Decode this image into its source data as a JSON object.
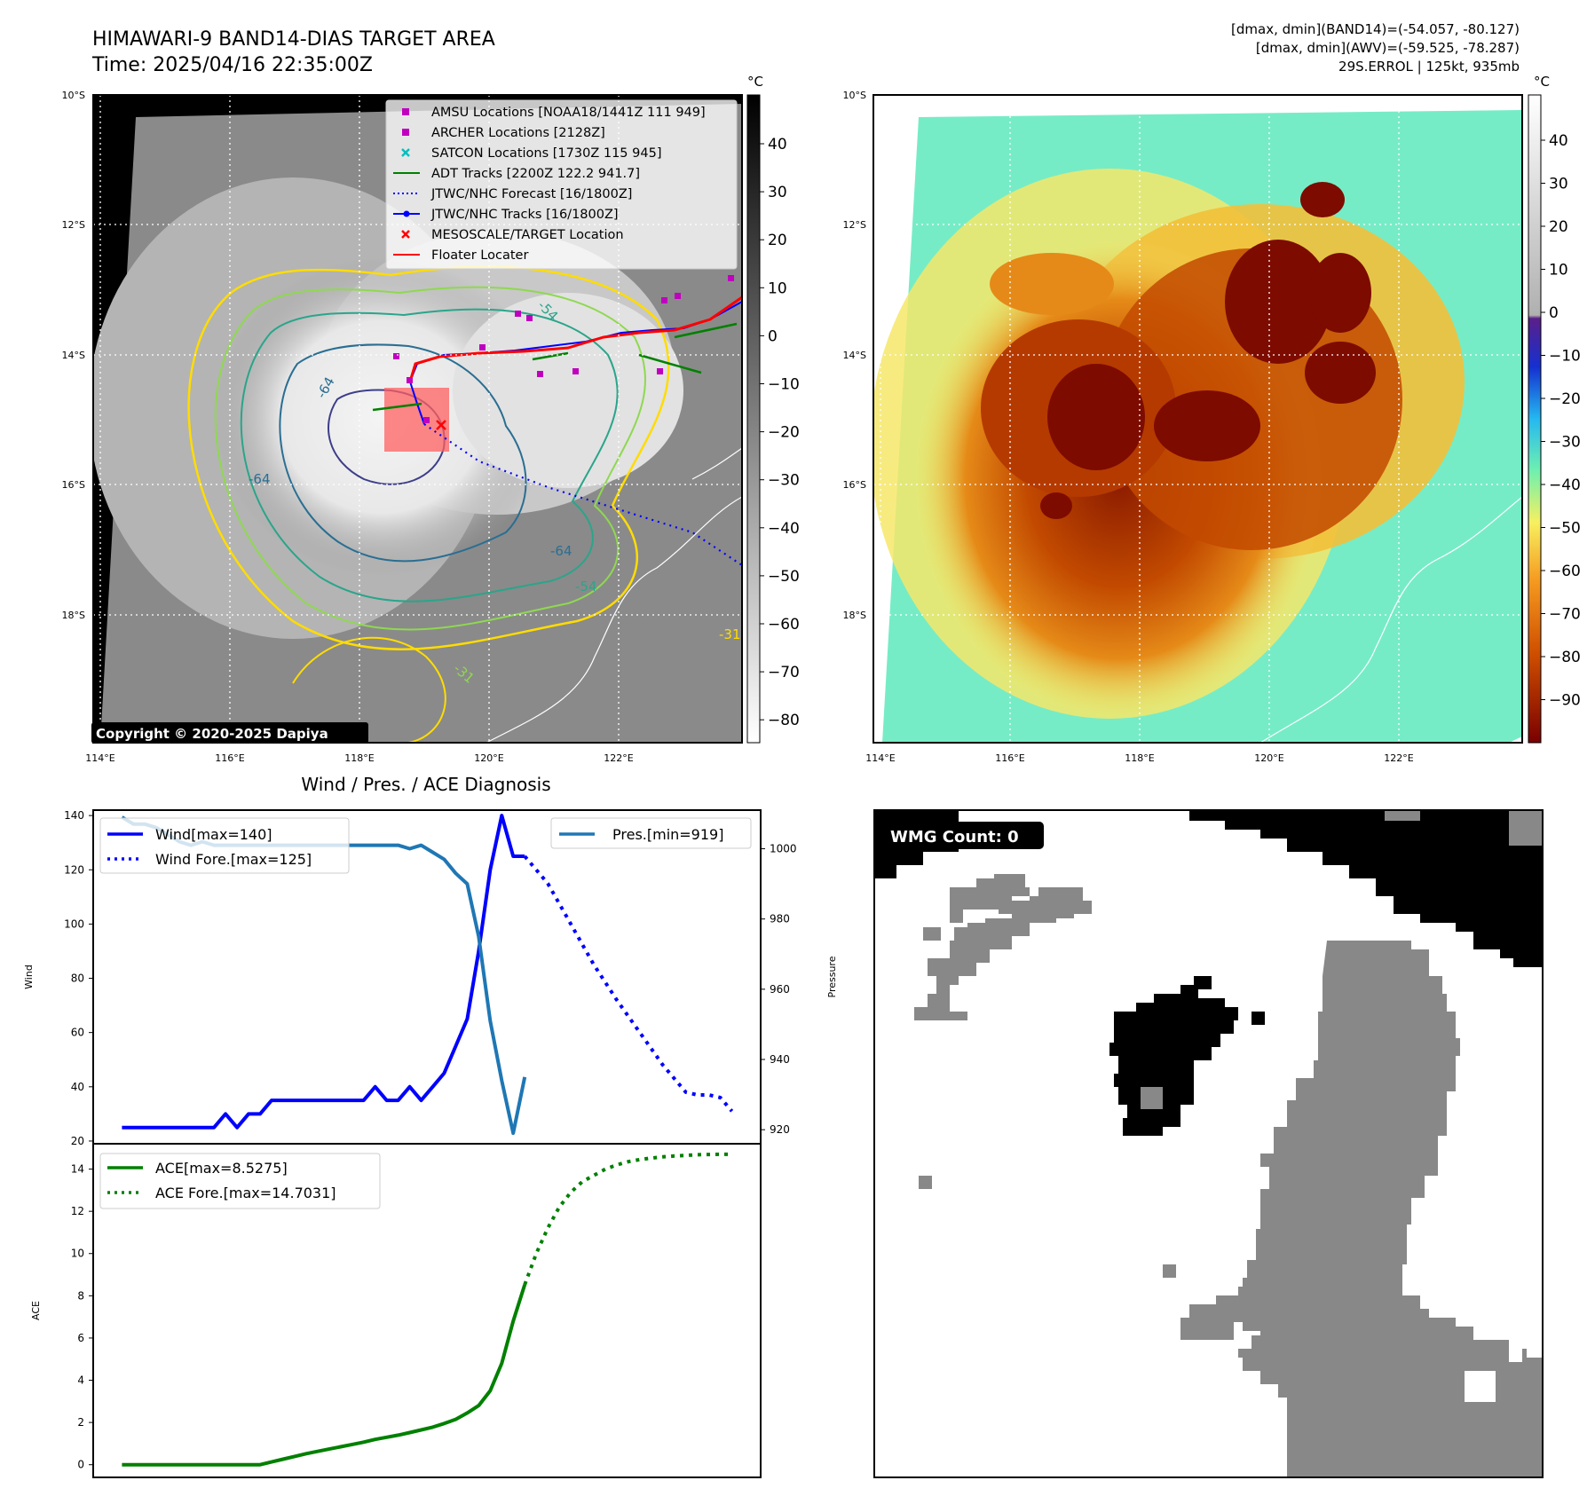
{
  "header": {
    "title_line1": "HIMAWARI-9 BAND14-DIAS TARGET AREA",
    "title_line2": "Time: 2025/04/16 22:35:00Z",
    "right_line1": "[dmax, dmin](BAND14)=(-54.057, -80.127)",
    "right_line2": "[dmax, dmin](AWV)=(-59.525, -78.287)",
    "right_line3": "29S.ERROL | 125kt, 935mb"
  },
  "map_axes": {
    "lat_labels": [
      "10°S",
      "12°S",
      "14°S",
      "16°S",
      "18°S"
    ],
    "lon_labels": [
      "114°E",
      "116°E",
      "118°E",
      "120°E",
      "122°E"
    ]
  },
  "ir_panel": {
    "copyright": "Copyright © 2020-2025 Dapiya",
    "colorbar_unit": "°C",
    "colorbar_ticks": [
      "40",
      "30",
      "20",
      "10",
      "0",
      "−10",
      "−20",
      "−30",
      "−40",
      "−50",
      "−60",
      "−70",
      "−80"
    ],
    "contour_labels": [
      "-64",
      "-64",
      "-64",
      "-54",
      "-54",
      "-31",
      "-31"
    ],
    "legend": [
      {
        "label": "AMSU Locations [NOAA18/1441Z 111 949]",
        "color": "#bf00bf",
        "kind": "square"
      },
      {
        "label": "ARCHER Locations [2128Z]",
        "color": "#bf00bf",
        "kind": "square"
      },
      {
        "label": "SATCON Locations [1730Z 115 945]",
        "color": "#00bfbf",
        "kind": "x"
      },
      {
        "label": "ADT Tracks [2200Z 122.2 941.7]",
        "color": "#008000",
        "kind": "line"
      },
      {
        "label": "JTWC/NHC Forecast [16/1800Z]",
        "color": "#0000ff",
        "kind": "dotted"
      },
      {
        "label": "JTWC/NHC Tracks [16/1800Z]",
        "color": "#0000ff",
        "kind": "line-dot"
      },
      {
        "label": "MESOSCALE/TARGET Location",
        "color": "#ff0000",
        "kind": "x"
      },
      {
        "label": "Floater Locater",
        "color": "#ff0000",
        "kind": "line"
      }
    ]
  },
  "awv_panel": {
    "colorbar_unit": "°C",
    "colorbar_ticks": [
      "40",
      "30",
      "20",
      "10",
      "0",
      "−10",
      "−20",
      "−30",
      "−40",
      "−50",
      "−60",
      "−70",
      "−80",
      "−90"
    ]
  },
  "wmg_panel": {
    "badge": "WMG Count: 0"
  },
  "chart_data": [
    {
      "type": "line",
      "title": "Wind / Pres. / ACE Diagnosis",
      "ylabel": "Wind",
      "y2label": "Pressure",
      "ylim": [
        19,
        142
      ],
      "y2lim": [
        916,
        1011
      ],
      "yticks": [
        20,
        40,
        60,
        80,
        100,
        120,
        140
      ],
      "y2ticks": [
        920,
        940,
        960,
        980,
        1000
      ],
      "series": [
        {
          "name": "Wind[max=140]",
          "color": "#0000ff",
          "style": "solid",
          "axis": "left",
          "x": [
            0,
            1,
            2,
            3,
            4,
            5,
            6,
            7,
            8,
            9,
            10,
            11,
            12,
            13,
            14,
            15,
            16,
            17,
            18,
            19,
            20,
            21,
            22,
            23,
            24,
            25,
            26,
            27,
            28,
            29,
            30,
            31,
            32,
            33,
            34,
            35
          ],
          "values": [
            25,
            25,
            25,
            25,
            25,
            25,
            25,
            25,
            25,
            30,
            25,
            30,
            30,
            35,
            35,
            35,
            35,
            35,
            35,
            35,
            35,
            35,
            40,
            35,
            35,
            40,
            35,
            40,
            45,
            55,
            65,
            90,
            120,
            140,
            125,
            125
          ]
        },
        {
          "name": "Wind Fore.[max=125]",
          "color": "#0000ff",
          "style": "dotted",
          "axis": "left",
          "x": [
            35,
            37,
            39,
            41,
            43,
            45,
            47,
            49,
            50,
            51,
            52,
            53
          ],
          "values": [
            125,
            115,
            100,
            85,
            72,
            60,
            48,
            38,
            37,
            37,
            36,
            31
          ]
        },
        {
          "name": "Pres.[min=919]",
          "color": "#1f77b4",
          "style": "solid",
          "axis": "right",
          "x": [
            0,
            1,
            2,
            3,
            4,
            5,
            6,
            7,
            8,
            9,
            10,
            11,
            12,
            13,
            14,
            15,
            16,
            17,
            18,
            19,
            20,
            21,
            22,
            23,
            24,
            25,
            26,
            27,
            28,
            29,
            30,
            31,
            32,
            33,
            34,
            35
          ],
          "values": [
            1009,
            1007,
            1007,
            1006,
            1004,
            1002,
            1001,
            1002,
            1001,
            1001,
            1001,
            1001,
            1001,
            1001,
            1001,
            1001,
            1001,
            1001,
            1001,
            1001,
            1001,
            1001,
            1001,
            1001,
            1001,
            1000,
            1001,
            999,
            997,
            993,
            990,
            975,
            951,
            934,
            919,
            935
          ]
        }
      ]
    },
    {
      "type": "line",
      "title": "",
      "ylabel": "ACE",
      "ylim": [
        -0.6,
        15.2
      ],
      "yticks": [
        0,
        2,
        4,
        6,
        8,
        10,
        12,
        14
      ],
      "series": [
        {
          "name": "ACE[max=8.5275]",
          "color": "#008000",
          "style": "solid",
          "x": [
            0,
            1,
            2,
            3,
            4,
            5,
            6,
            7,
            8,
            9,
            10,
            11,
            12,
            13,
            14,
            15,
            16,
            17,
            18,
            19,
            20,
            21,
            22,
            23,
            24,
            25,
            26,
            27,
            28,
            29,
            30,
            31,
            32,
            33,
            34,
            35
          ],
          "values": [
            0,
            0,
            0,
            0,
            0,
            0,
            0,
            0,
            0,
            0,
            0,
            0,
            0,
            0.13,
            0.26,
            0.39,
            0.52,
            0.63,
            0.74,
            0.85,
            0.96,
            1.07,
            1.2,
            1.3,
            1.4,
            1.52,
            1.65,
            1.78,
            1.95,
            2.15,
            2.45,
            2.8,
            3.5,
            4.8,
            6.8,
            8.5275
          ]
        },
        {
          "name": "ACE Fore.[max=14.7031]",
          "color": "#008000",
          "style": "dotted",
          "x": [
            35,
            36,
            37,
            38,
            39,
            40,
            41,
            42,
            43,
            44,
            45,
            46,
            47,
            48,
            49,
            50,
            51,
            52,
            53
          ],
          "values": [
            8.5275,
            10.0,
            11.2,
            12.2,
            12.9,
            13.4,
            13.7,
            14.0,
            14.2,
            14.35,
            14.45,
            14.52,
            14.58,
            14.62,
            14.65,
            14.68,
            14.69,
            14.7,
            14.7031
          ]
        }
      ]
    }
  ]
}
